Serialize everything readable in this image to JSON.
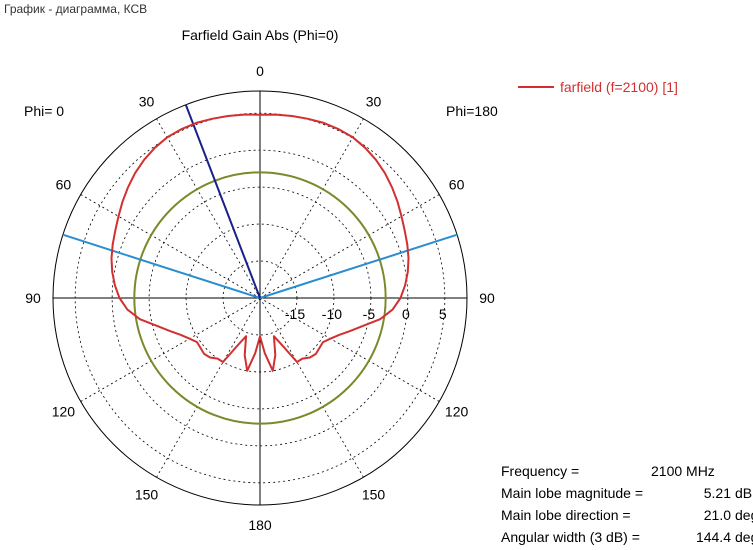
{
  "window": {
    "title": "График - диаграмма, КСВ"
  },
  "chart_data": {
    "type": "polar",
    "title": "Farfield Gain Abs (Phi=0)",
    "left_side_label": "Phi=  0",
    "right_side_label": "Phi=180",
    "angle_labels_left": [
      "0",
      "30",
      "60",
      "90",
      "120",
      "150",
      "180"
    ],
    "angle_labels_right": [
      "30",
      "60",
      "90",
      "120",
      "150"
    ],
    "radial_ticks": [
      "-15",
      "-10",
      "-5",
      "0",
      "5"
    ],
    "radial_tick_values": [
      -15,
      -10,
      -5,
      0,
      5
    ],
    "r_min": -20,
    "r_max": 8,
    "legend": [
      {
        "name": "farfield (f=2100) [1]",
        "color": "#d23030"
      }
    ],
    "series": [
      {
        "name": "farfield (f=2100) [1]",
        "color": "#d23030",
        "theta_deg": [
          0,
          5,
          10,
          15,
          20,
          25,
          30,
          35,
          40,
          45,
          50,
          55,
          60,
          65,
          70,
          75,
          80,
          85,
          90,
          95,
          100,
          105,
          110,
          115,
          120,
          125,
          130,
          135,
          140,
          145,
          150,
          155,
          160,
          165,
          170,
          175,
          180,
          185,
          190,
          195,
          200,
          205,
          210,
          215,
          220,
          225,
          230,
          235,
          240,
          245,
          250,
          255,
          260,
          265,
          270,
          275,
          280,
          285,
          290,
          295,
          300,
          305,
          310,
          315,
          320,
          325,
          330,
          335,
          340,
          345,
          350,
          355,
          360
        ],
        "gain_db": [
          4.8,
          4.9,
          5.0,
          5.1,
          5.2,
          5.2,
          5.1,
          4.8,
          4.4,
          3.9,
          3.3,
          2.7,
          2.1,
          1.6,
          1.2,
          0.8,
          0.3,
          -0.3,
          -1.0,
          -2.0,
          -3.5,
          -5.5,
          -7.0,
          -8.2,
          -9.0,
          -9.6,
          -9.5,
          -9.3,
          -9.5,
          -10.0,
          -10.0,
          -13.0,
          -14.5,
          -12.0,
          -10.0,
          -12.5,
          -14.8,
          -12.5,
          -10.0,
          -12.0,
          -14.5,
          -13.0,
          -10.0,
          -10.0,
          -9.5,
          -9.3,
          -9.5,
          -9.6,
          -9.0,
          -8.2,
          -7.0,
          -5.5,
          -3.5,
          -2.0,
          -1.0,
          -0.3,
          0.3,
          0.8,
          1.2,
          1.6,
          2.1,
          2.7,
          3.3,
          3.9,
          4.4,
          4.8,
          5.1,
          5.2,
          5.2,
          5.1,
          5.0,
          4.9,
          4.8
        ]
      }
    ],
    "reference_circle_db": -3,
    "main_lobe_direction_deg": 21.0,
    "beamwidth_edges_deg": [
      -72.2,
      72.2
    ],
    "colors": {
      "circle": "#7a8a2a",
      "lobe": "#1a1f8a",
      "beamwidth": "#2a8ed0"
    }
  },
  "info": {
    "rows": [
      {
        "key": "Frequency =",
        "value": "2100 MHz",
        "unit": ""
      },
      {
        "key": "Main lobe magnitude =",
        "value": "5.21",
        "unit": "dB"
      },
      {
        "key": "Main lobe direction =",
        "value": "21.0",
        "unit": "deg."
      },
      {
        "key": "Angular width (3 dB) =",
        "value": "144.4",
        "unit": "deg."
      }
    ]
  }
}
